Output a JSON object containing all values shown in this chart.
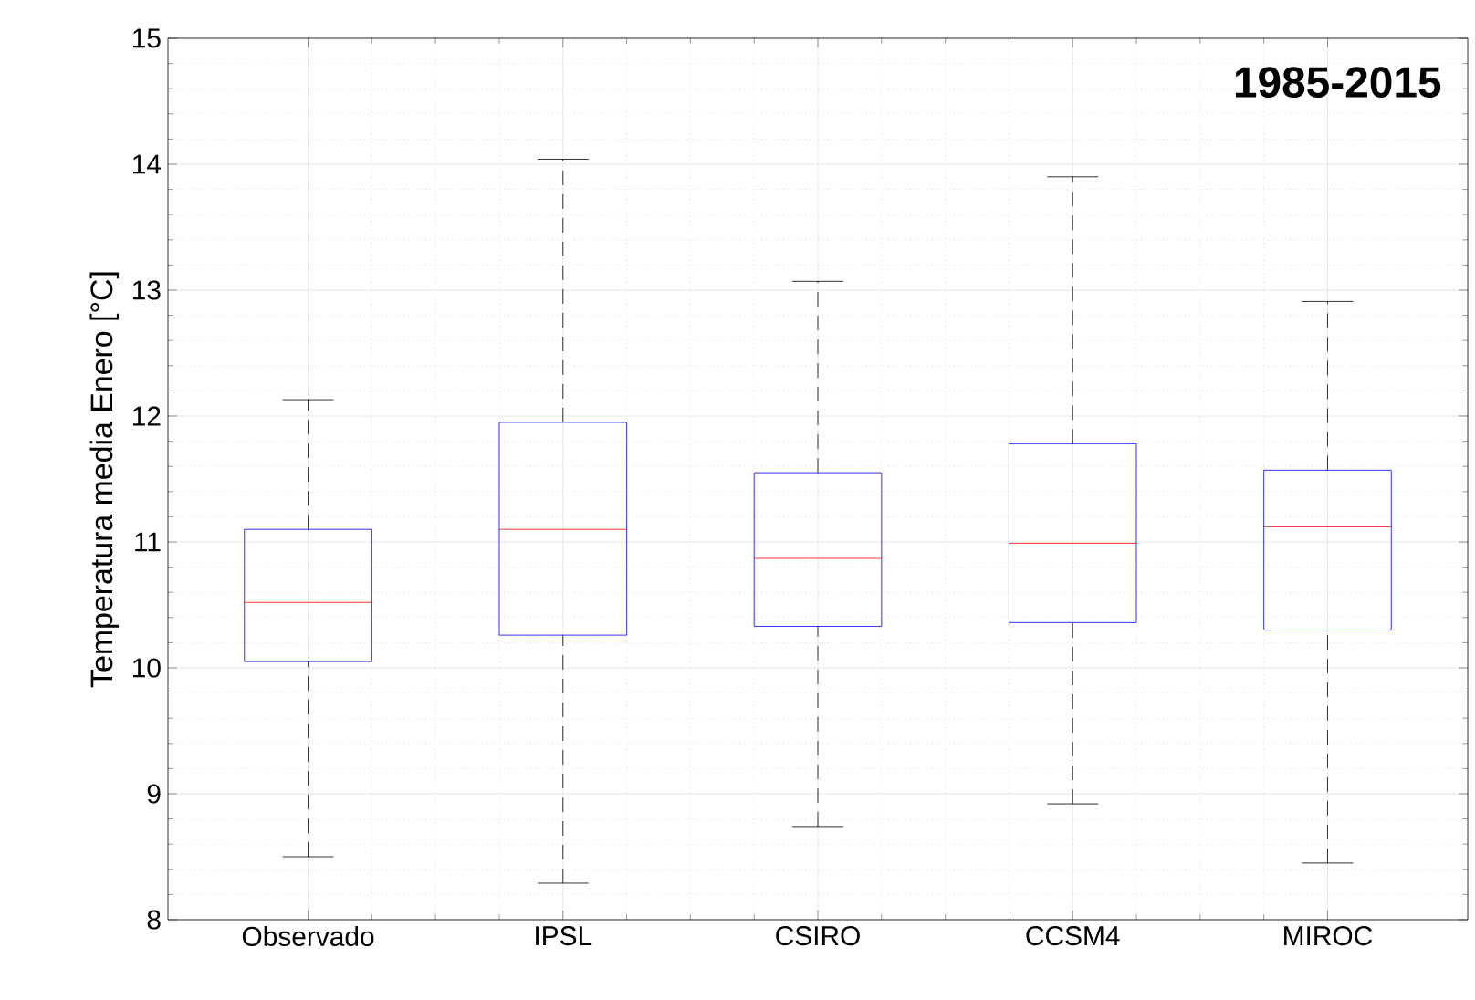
{
  "chart_data": {
    "type": "box",
    "title": "1985-2015",
    "ylabel": "Temperatura media Enero [°C]",
    "categories": [
      "Observado",
      "IPSL",
      "CSIRO",
      "CCSM4",
      "MIROC"
    ],
    "boxes": [
      {
        "low": 8.5,
        "q1": 10.05,
        "median": 10.52,
        "q3": 11.1,
        "high": 12.13
      },
      {
        "low": 8.29,
        "q1": 10.26,
        "median": 11.1,
        "q3": 11.95,
        "high": 14.04
      },
      {
        "low": 8.74,
        "q1": 10.33,
        "median": 10.87,
        "q3": 11.55,
        "high": 13.07
      },
      {
        "low": 8.92,
        "q1": 10.36,
        "median": 10.99,
        "q3": 11.78,
        "high": 13.9
      },
      {
        "low": 8.45,
        "q1": 10.3,
        "median": 11.12,
        "q3": 11.57,
        "high": 12.91
      }
    ],
    "ylim": [
      8,
      15
    ],
    "yticks": [
      8,
      9,
      10,
      11,
      12,
      13,
      14,
      15
    ],
    "grid": true
  }
}
